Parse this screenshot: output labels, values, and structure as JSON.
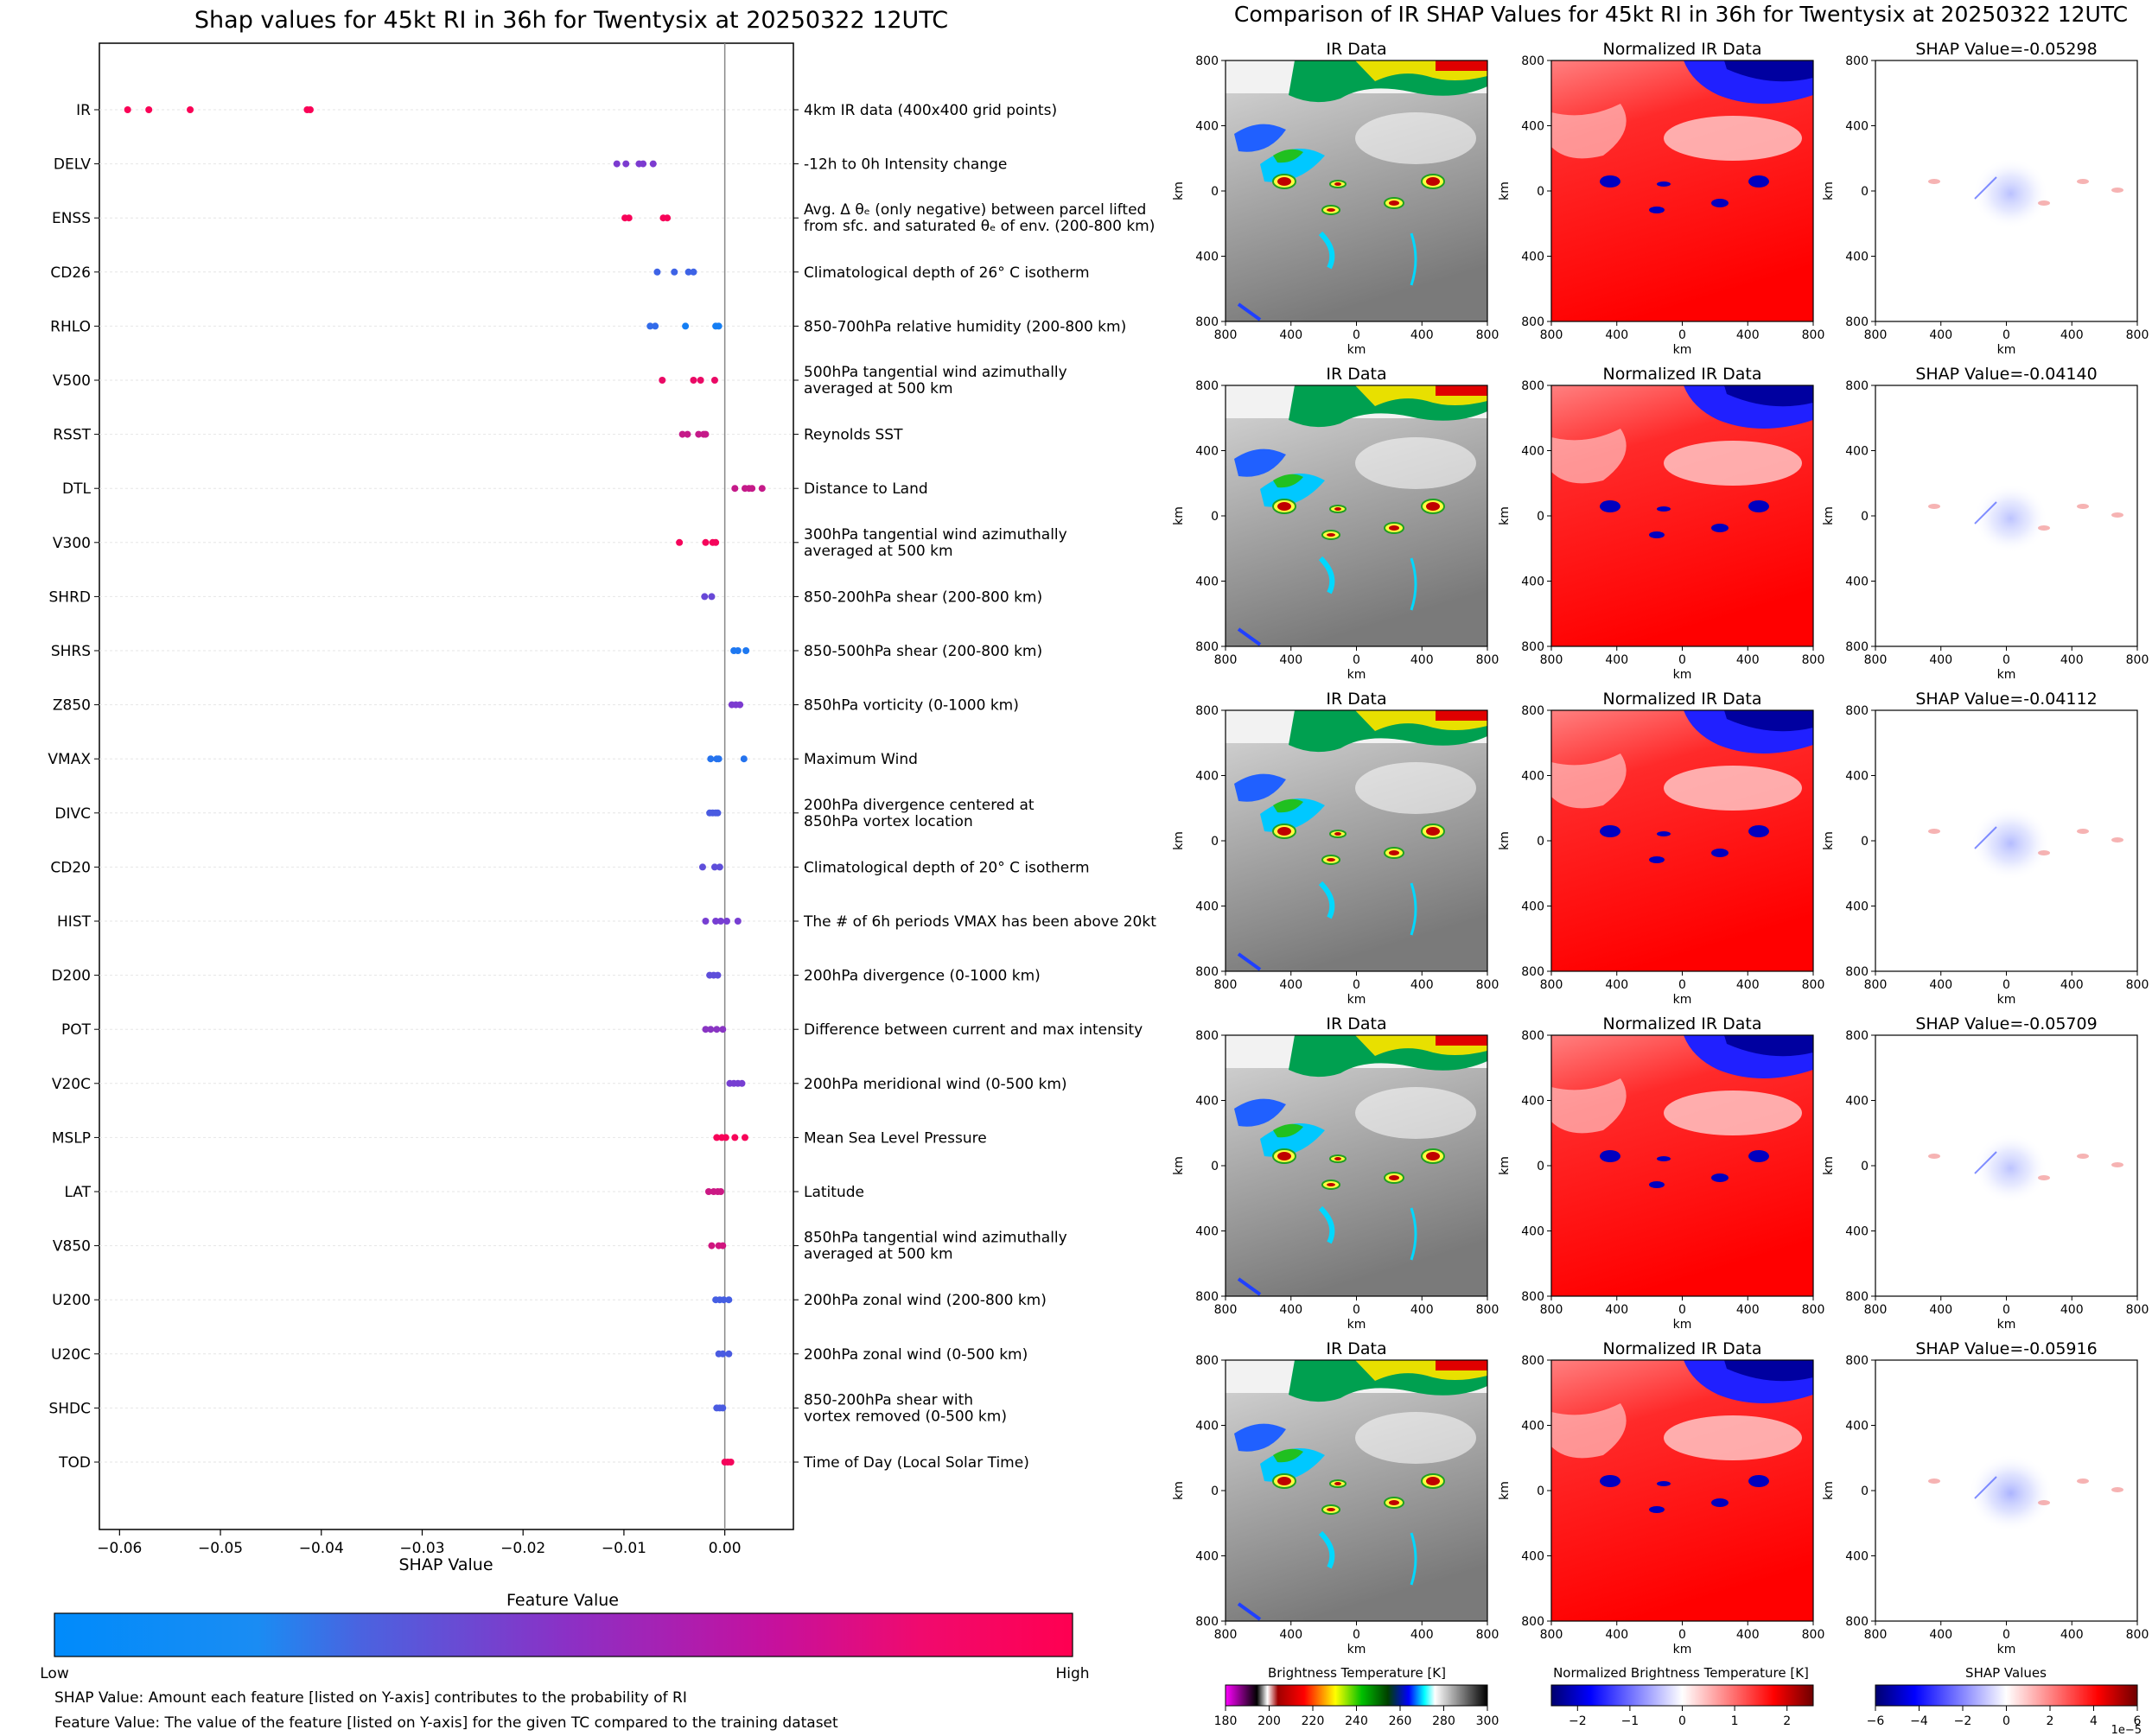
{
  "colors": {
    "low": "#008bfb",
    "mid": "#7c3bd0",
    "high": "#ff0051",
    "grid": "#e6e6e6",
    "zero_line": "#888888"
  },
  "left": {
    "title": "Shap values for 45kt RI in 36h for Twentysix at 20250322 12UTC",
    "xlabel": "SHAP Value",
    "colorbar_title": "Feature Value",
    "colorbar_low": "Low",
    "colorbar_high": "High",
    "footnote1": "SHAP Value: Amount each feature [listed on Y-axis] contributes to the probability of RI",
    "footnote2": "Feature Value: The value of the feature [listed on Y-axis] for the given TC compared to the training dataset"
  },
  "right": {
    "title": "Comparison of IR SHAP Values for 45kt RI in 36h for Twentysix at 20250322 12UTC",
    "col_title_ir": "IR Data",
    "col_title_norm": "Normalized IR Data",
    "shap_titles": [
      "SHAP Value=-0.05298",
      "SHAP Value=-0.04140",
      "SHAP Value=-0.04112",
      "SHAP Value=-0.05709",
      "SHAP Value=-0.05916"
    ],
    "axis_label": "km",
    "ticks": [
      "800",
      "400",
      "0",
      "400",
      "800"
    ],
    "cbar_ir_title": "Brightness Temperature [K]",
    "cbar_ir_ticks": [
      "180",
      "200",
      "220",
      "240",
      "260",
      "280",
      "300"
    ],
    "cbar_norm_title": "Normalized Brightness Temperature [K]",
    "cbar_norm_ticks": [
      "−2",
      "−1",
      "0",
      "1",
      "2"
    ],
    "cbar_shap_title": "SHAP Values",
    "cbar_shap_ticks": [
      "−6",
      "−4",
      "−2",
      "0",
      "2",
      "4",
      "6"
    ],
    "cbar_shap_exp": "1e−5"
  },
  "chart_data": {
    "type": "scatter",
    "subtype": "shap-beeswarm",
    "title": "Shap values for 45kt RI in 36h for Twentysix at 20250322 12UTC",
    "xlabel": "SHAP Value",
    "xlim": [
      -0.062,
      0.0068
    ],
    "xticks": [
      -0.06,
      -0.05,
      -0.04,
      -0.03,
      -0.02,
      -0.01,
      0.0
    ],
    "xtick_labels": [
      "−0.06",
      "−0.05",
      "−0.04",
      "−0.03",
      "−0.02",
      "−0.01",
      "0.00"
    ],
    "features": [
      {
        "name": "IR",
        "desc": [
          "4km IR data (400x400 grid points)"
        ],
        "values": [
          -0.0592,
          -0.0571,
          -0.053,
          -0.0414,
          -0.0411
        ],
        "fv": [
          0.98,
          0.98,
          0.98,
          0.98,
          0.98
        ]
      },
      {
        "name": "DELV",
        "desc": [
          "-12h to 0h Intensity change"
        ],
        "values": [
          -0.0107,
          -0.0098,
          -0.0085,
          -0.0081,
          -0.0071
        ],
        "fv": [
          0.5,
          0.5,
          0.5,
          0.5,
          0.5
        ]
      },
      {
        "name": "ENSS",
        "desc": [
          "Avg. Δ θₑ (only negative) between parcel lifted",
          "from sfc. and saturated θₑ of env. (200-800 km)"
        ],
        "values": [
          -0.0099,
          -0.0095,
          -0.0061,
          -0.0057
        ],
        "fv": [
          0.97,
          0.97,
          0.97,
          0.97
        ]
      },
      {
        "name": "CD26",
        "desc": [
          "Climatological depth of 26° C isotherm"
        ],
        "values": [
          -0.0067,
          -0.005,
          -0.0036,
          -0.0031
        ],
        "fv": [
          0.25,
          0.25,
          0.25,
          0.25
        ]
      },
      {
        "name": "RHLO",
        "desc": [
          "850-700hPa relative humidity (200-800 km)"
        ],
        "values": [
          -0.0074,
          -0.0069,
          -0.0039,
          -0.0009,
          -0.0006
        ],
        "fv": [
          0.2,
          0.2,
          0.08,
          0.08,
          0.08
        ]
      },
      {
        "name": "V500",
        "desc": [
          "500hPa tangential wind azimuthally",
          "averaged at 500 km"
        ],
        "values": [
          -0.0062,
          -0.0031,
          -0.0024,
          -0.001
        ],
        "fv": [
          0.92,
          0.92,
          0.92,
          0.92
        ]
      },
      {
        "name": "RSST",
        "desc": [
          "Reynolds SST"
        ],
        "values": [
          -0.0042,
          -0.0037,
          -0.0026,
          -0.0021,
          -0.0019
        ],
        "fv": [
          0.78,
          0.78,
          0.78,
          0.78,
          0.78
        ]
      },
      {
        "name": "DTL",
        "desc": [
          "Distance to Land"
        ],
        "values": [
          0.001,
          0.002,
          0.0024,
          0.0027,
          0.0037
        ],
        "fv": [
          0.78,
          0.78,
          0.78,
          0.78,
          0.78
        ]
      },
      {
        "name": "V300",
        "desc": [
          "300hPa tangential wind azimuthally",
          "averaged at 500 km"
        ],
        "values": [
          -0.0045,
          -0.0019,
          -0.0012,
          -0.0009
        ],
        "fv": [
          0.96,
          0.96,
          0.96,
          0.96
        ]
      },
      {
        "name": "SHRD",
        "desc": [
          "850-200hPa shear (200-800 km)"
        ],
        "values": [
          -0.002,
          -0.0013
        ],
        "fv": [
          0.42,
          0.42
        ]
      },
      {
        "name": "SHRS",
        "desc": [
          "850-500hPa shear (200-800 km)"
        ],
        "values": [
          0.0009,
          0.0013,
          0.0021
        ],
        "fv": [
          0.12,
          0.12,
          0.12
        ]
      },
      {
        "name": "Z850",
        "desc": [
          "850hPa vorticity (0-1000 km)"
        ],
        "values": [
          0.0007,
          0.0011,
          0.0015
        ],
        "fv": [
          0.5,
          0.5,
          0.5
        ]
      },
      {
        "name": "VMAX",
        "desc": [
          "Maximum Wind"
        ],
        "values": [
          -0.0014,
          -0.0008,
          -0.0006,
          0.0019
        ],
        "fv": [
          0.15,
          0.15,
          0.15,
          0.15
        ]
      },
      {
        "name": "DIVC",
        "desc": [
          "200hPa divergence centered at",
          "850hPa vortex location"
        ],
        "values": [
          -0.0015,
          -0.0012,
          -0.0009,
          -0.0007
        ],
        "fv": [
          0.3,
          0.3,
          0.3,
          0.3
        ]
      },
      {
        "name": "CD20",
        "desc": [
          "Climatological depth of 20° C isotherm"
        ],
        "values": [
          -0.0022,
          -0.001,
          -0.0005
        ],
        "fv": [
          0.38,
          0.38,
          0.38
        ]
      },
      {
        "name": "HIST",
        "desc": [
          "The # of 6h periods VMAX has been above 20kt"
        ],
        "values": [
          -0.0019,
          -0.0009,
          -0.0004,
          0.0002,
          0.0013
        ],
        "fv": [
          0.48,
          0.48,
          0.48,
          0.48,
          0.48
        ]
      },
      {
        "name": "D200",
        "desc": [
          "200hPa divergence (0-1000 km)"
        ],
        "values": [
          -0.0015,
          -0.0011,
          -0.0007
        ],
        "fv": [
          0.38,
          0.38,
          0.38
        ]
      },
      {
        "name": "POT",
        "desc": [
          "Difference between current and max intensity"
        ],
        "values": [
          -0.0019,
          -0.0014,
          -0.0008,
          -0.0002
        ],
        "fv": [
          0.55,
          0.55,
          0.55,
          0.55
        ]
      },
      {
        "name": "V20C",
        "desc": [
          "200hPa meridional wind (0-500 km)"
        ],
        "values": [
          0.0005,
          0.0009,
          0.0013,
          0.0017
        ],
        "fv": [
          0.48,
          0.48,
          0.48,
          0.48
        ]
      },
      {
        "name": "MSLP",
        "desc": [
          "Mean Sea Level Pressure"
        ],
        "values": [
          -0.0008,
          -0.0003,
          0.0001,
          0.001,
          0.002
        ],
        "fv": [
          0.97,
          0.97,
          0.97,
          0.97,
          0.97
        ]
      },
      {
        "name": "LAT",
        "desc": [
          "Latitude"
        ],
        "values": [
          -0.0016,
          -0.0011,
          -0.0007,
          -0.0004
        ],
        "fv": [
          0.8,
          0.8,
          0.8,
          0.8
        ]
      },
      {
        "name": "V850",
        "desc": [
          "850hPa tangential wind azimuthally",
          "averaged at 500 km"
        ],
        "values": [
          -0.0013,
          -0.0006,
          -0.0002
        ],
        "fv": [
          0.82,
          0.82,
          0.82
        ]
      },
      {
        "name": "U200",
        "desc": [
          "200hPa zonal wind (200-800 km)"
        ],
        "values": [
          -0.0009,
          -0.0005,
          -0.0001,
          0.0004
        ],
        "fv": [
          0.28,
          0.28,
          0.28,
          0.28
        ]
      },
      {
        "name": "U20C",
        "desc": [
          "200hPa zonal wind (0-500 km)"
        ],
        "values": [
          -0.0006,
          -0.0002,
          0.0004
        ],
        "fv": [
          0.3,
          0.3,
          0.3
        ]
      },
      {
        "name": "SHDC",
        "desc": [
          "850-200hPa shear with",
          "vortex removed (0-500 km)"
        ],
        "values": [
          -0.0008,
          -0.0005,
          -0.0002
        ],
        "fv": [
          0.3,
          0.3,
          0.3
        ]
      },
      {
        "name": "TOD",
        "desc": [
          "Time of Day (Local Solar Time)"
        ],
        "values": [
          0.0,
          0.0003,
          0.0006
        ],
        "fv": [
          0.96,
          0.96,
          0.96
        ]
      }
    ]
  }
}
